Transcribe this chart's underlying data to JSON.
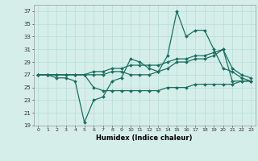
{
  "xlabel": "Humidex (Indice chaleur)",
  "x": [
    0,
    1,
    2,
    3,
    4,
    5,
    6,
    7,
    8,
    9,
    10,
    11,
    12,
    13,
    14,
    15,
    16,
    17,
    18,
    19,
    20,
    21,
    22,
    23
  ],
  "line1": [
    27,
    27,
    26.5,
    26.5,
    26,
    19.5,
    23,
    23.5,
    26,
    26.5,
    29.5,
    29,
    28,
    27.5,
    30,
    37,
    33,
    34,
    34,
    31,
    28,
    27.5,
    26.5,
    26
  ],
  "line2": [
    27,
    27,
    27,
    27,
    27,
    27,
    27,
    27,
    27.5,
    27.5,
    27,
    27,
    27,
    27.5,
    28,
    29,
    29,
    29.5,
    29.5,
    30,
    31,
    28,
    27,
    26.5
  ],
  "line3": [
    27,
    27,
    27,
    27,
    27,
    27,
    27.5,
    27.5,
    28,
    28,
    28.5,
    28.5,
    28.5,
    28.5,
    29,
    29.5,
    29.5,
    30,
    30,
    30.5,
    31,
    26,
    26,
    26
  ],
  "line4": [
    27,
    27,
    27,
    27,
    27,
    27,
    25,
    24.5,
    24.5,
    24.5,
    24.5,
    24.5,
    24.5,
    24.5,
    25,
    25,
    25,
    25.5,
    25.5,
    25.5,
    25.5,
    25.5,
    26,
    26
  ],
  "ylim": [
    19,
    38
  ],
  "yticks": [
    19,
    21,
    23,
    25,
    27,
    29,
    31,
    33,
    35,
    37
  ],
  "xlim": [
    -0.5,
    23.5
  ],
  "line_color": "#1a7060",
  "bg_color": "#d5eeea",
  "grid_color": "#b8dcd8"
}
